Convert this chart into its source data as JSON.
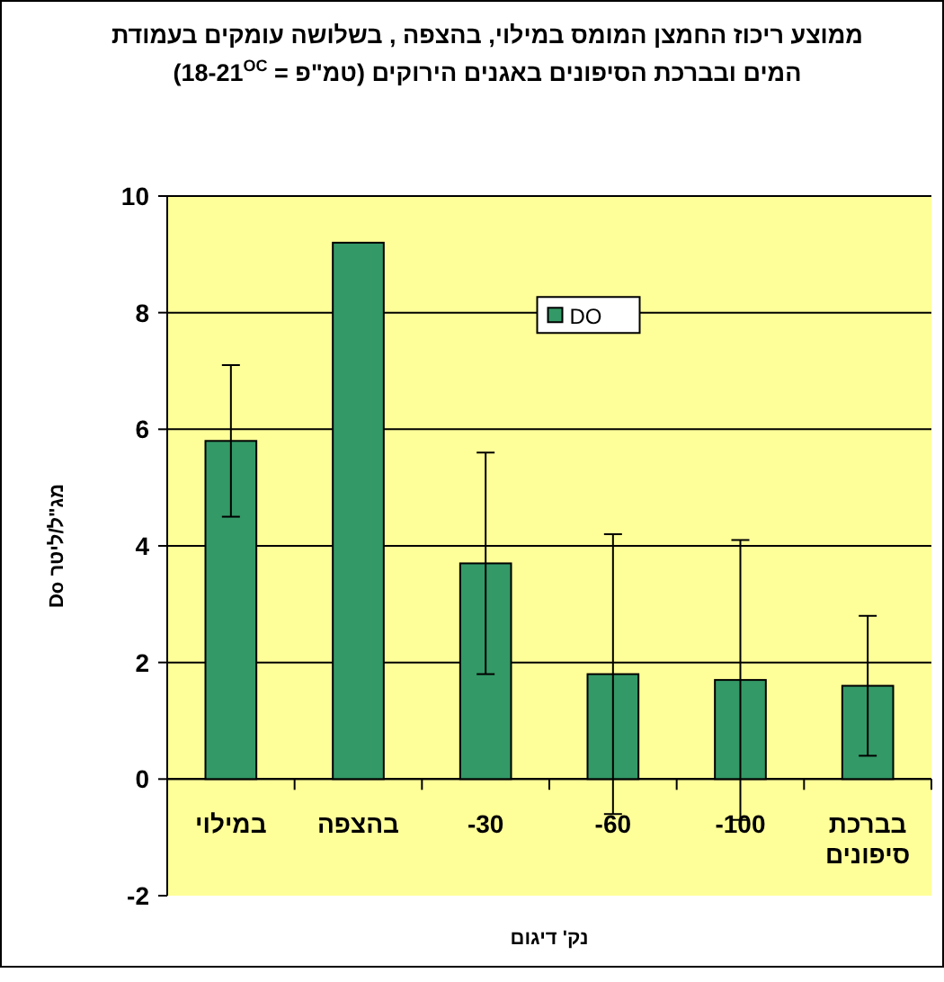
{
  "chart_data": {
    "type": "bar",
    "title": "ממוצע ריכוז החמצן המומס  במילוי, בהצפה , בשלושה עומקים בעמודת המים ובברכת הסיפונים באגנים הירוקים  (טמ\"פ = 18-21$^{OC}$)",
    "xlabel": "נק' דיגום",
    "ylabel": "מג\"ל/ליטר Do",
    "categories": [
      "במילוי",
      "בהצפה",
      "-30",
      "-60",
      "-100",
      "בברכת סיפונים"
    ],
    "series": [
      {
        "name": "DO",
        "color": "#339966",
        "values": [
          5.8,
          9.2,
          3.7,
          1.8,
          1.7,
          1.6
        ],
        "errors": [
          1.3,
          null,
          1.9,
          2.4,
          2.4,
          1.2
        ]
      }
    ],
    "ylim": [
      -2,
      10
    ],
    "yticks": [
      -2,
      0,
      2,
      4,
      6,
      8,
      10
    ],
    "grid": "y",
    "legend": "top"
  }
}
